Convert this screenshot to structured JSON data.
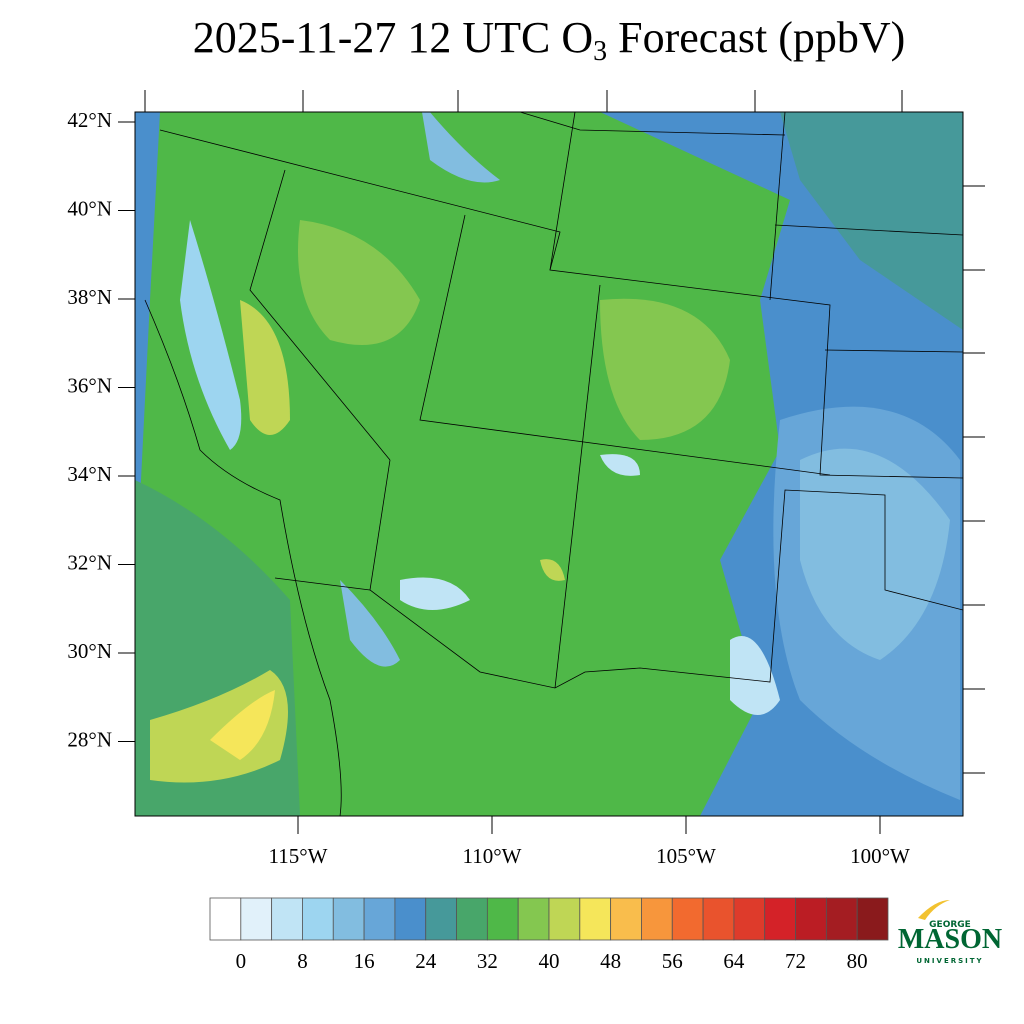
{
  "title": {
    "main": "2025-11-27 12 UTC O",
    "subscript": "3",
    "rest": " Forecast (ppbV)"
  },
  "map": {
    "lat_ticks": [
      {
        "value": 42,
        "label": "42°N"
      },
      {
        "value": 40,
        "label": "40°N"
      },
      {
        "value": 38,
        "label": "38°N"
      },
      {
        "value": 36,
        "label": "36°N"
      },
      {
        "value": 34,
        "label": "34°N"
      },
      {
        "value": 32,
        "label": "32°N"
      },
      {
        "value": 30,
        "label": "30°N"
      },
      {
        "value": 28,
        "label": "28°N"
      }
    ],
    "lon_ticks": [
      {
        "value": -115,
        "label": "115°W"
      },
      {
        "value": -110,
        "label": "110°W"
      },
      {
        "value": -105,
        "label": "105°W"
      },
      {
        "value": -100,
        "label": "100°W"
      }
    ]
  },
  "colorbar": {
    "levels": [
      0,
      4,
      8,
      12,
      16,
      20,
      24,
      28,
      32,
      36,
      40,
      44,
      48,
      52,
      56,
      60,
      64,
      68,
      72,
      76,
      80
    ],
    "colors": [
      "#ffffff",
      "#e1f1fa",
      "#c0e4f5",
      "#9dd5f0",
      "#82bde0",
      "#67a6d8",
      "#4a8fcc",
      "#46999a",
      "#48a66a",
      "#4fb848",
      "#84c750",
      "#bfd655",
      "#f5e65a",
      "#f9bd4c",
      "#f7963c",
      "#f26a2f",
      "#e9532d",
      "#de3b2b",
      "#d42228",
      "#bb1d24",
      "#a41d22",
      "#8a1a1c"
    ],
    "ticks": [
      0,
      8,
      16,
      24,
      32,
      40,
      48,
      56,
      64,
      72,
      80
    ]
  },
  "logo": {
    "top": "GEORGE",
    "name": "MASON",
    "bottom": "UNIVERSITY"
  }
}
